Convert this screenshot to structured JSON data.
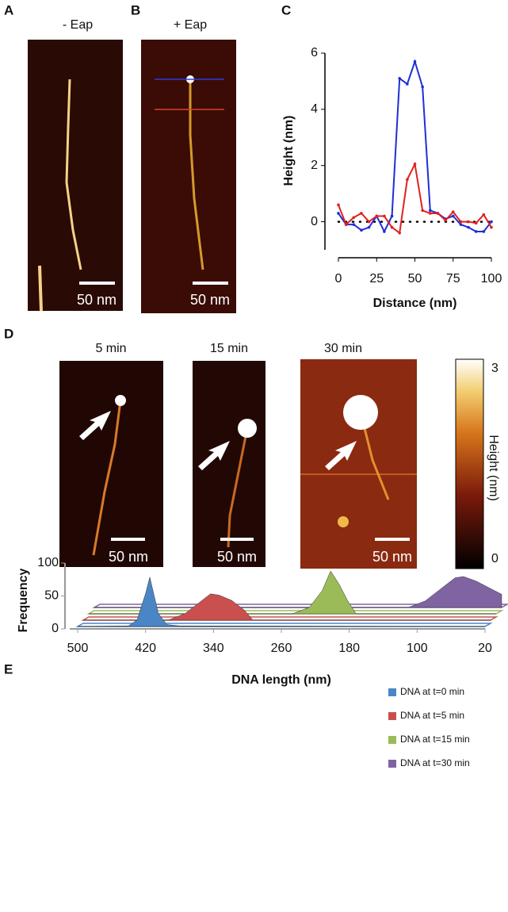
{
  "panel_labels": [
    "A",
    "B",
    "C",
    "D",
    "E"
  ],
  "image_panels": [
    {
      "title": "- Eap",
      "scale_bar": "50 nm"
    },
    {
      "title": "+ Eap",
      "scale_bar": "50 nm"
    },
    {
      "title": "5 min",
      "scale_bar": "50 nm"
    },
    {
      "title": "15 min",
      "scale_bar": "50 nm"
    },
    {
      "title": "30 min",
      "scale_bar": "50 nm"
    }
  ],
  "colorbar": {
    "label": "Height (nm)",
    "ticks": [
      0,
      3
    ]
  },
  "chart_data": [
    {
      "type": "line",
      "x_label": "Distance (nm)",
      "y_label": "Height (nm)",
      "x": [
        0,
        5,
        10,
        15,
        20,
        25,
        30,
        35,
        40,
        45,
        50,
        55,
        60,
        65,
        70,
        75,
        80,
        85,
        90,
        95,
        100
      ],
      "series": [
        {
          "color": "#1f2fd6",
          "values": [
            0.3,
            -0.1,
            -0.1,
            -0.3,
            -0.2,
            0.2,
            -0.35,
            0.2,
            5.1,
            4.9,
            5.7,
            4.8,
            0.4,
            0.3,
            0.1,
            0.2,
            -0.1,
            -0.2,
            -0.35,
            -0.35,
            0.0
          ]
        },
        {
          "color": "#e02020",
          "values": [
            0.6,
            -0.1,
            0.15,
            0.3,
            0.0,
            0.2,
            0.2,
            -0.2,
            -0.4,
            1.5,
            2.05,
            0.4,
            0.3,
            0.3,
            0.05,
            0.35,
            0.0,
            0.0,
            -0.05,
            0.25,
            -0.2
          ]
        }
      ],
      "hline": 0,
      "xlim": [
        0,
        100
      ],
      "xticks": [
        0,
        25,
        50,
        75,
        100
      ],
      "ylim": [
        -1,
        6
      ],
      "yticks": [
        0,
        2,
        4,
        6
      ]
    },
    {
      "type": "area3d",
      "x_label": "DNA length (nm)",
      "y_label": "Frequency",
      "series": [
        {
          "name": "DNA at t=0 min",
          "color": "#4a86c6",
          "x": [
            500,
            440,
            430,
            420,
            415,
            405,
            395,
            380,
            20
          ],
          "values": [
            0,
            1,
            10,
            50,
            75,
            20,
            3,
            1,
            0
          ]
        },
        {
          "name": "DNA at t=5 min",
          "color": "#c9504e",
          "x": [
            500,
            400,
            380,
            360,
            350,
            340,
            325,
            310,
            300,
            20
          ],
          "values": [
            0,
            0,
            10,
            30,
            40,
            38,
            30,
            15,
            0,
            0
          ]
        },
        {
          "name": "DNA at t=15 min",
          "color": "#9bbb59",
          "x": [
            500,
            260,
            240,
            225,
            215,
            205,
            195,
            185,
            20
          ],
          "values": [
            0,
            0,
            10,
            35,
            65,
            45,
            20,
            0,
            0
          ]
        },
        {
          "name": "DNA at t=30 min",
          "color": "#8064a2",
          "x": [
            500,
            130,
            110,
            90,
            75,
            65,
            50,
            35,
            20
          ],
          "values": [
            0,
            0,
            10,
            30,
            45,
            47,
            40,
            30,
            20
          ]
        }
      ],
      "xlim": [
        500,
        20
      ],
      "xticks": [
        500,
        420,
        340,
        260,
        180,
        100,
        20
      ],
      "ylim": [
        0,
        100
      ],
      "yticks": [
        0,
        50,
        100
      ]
    }
  ]
}
